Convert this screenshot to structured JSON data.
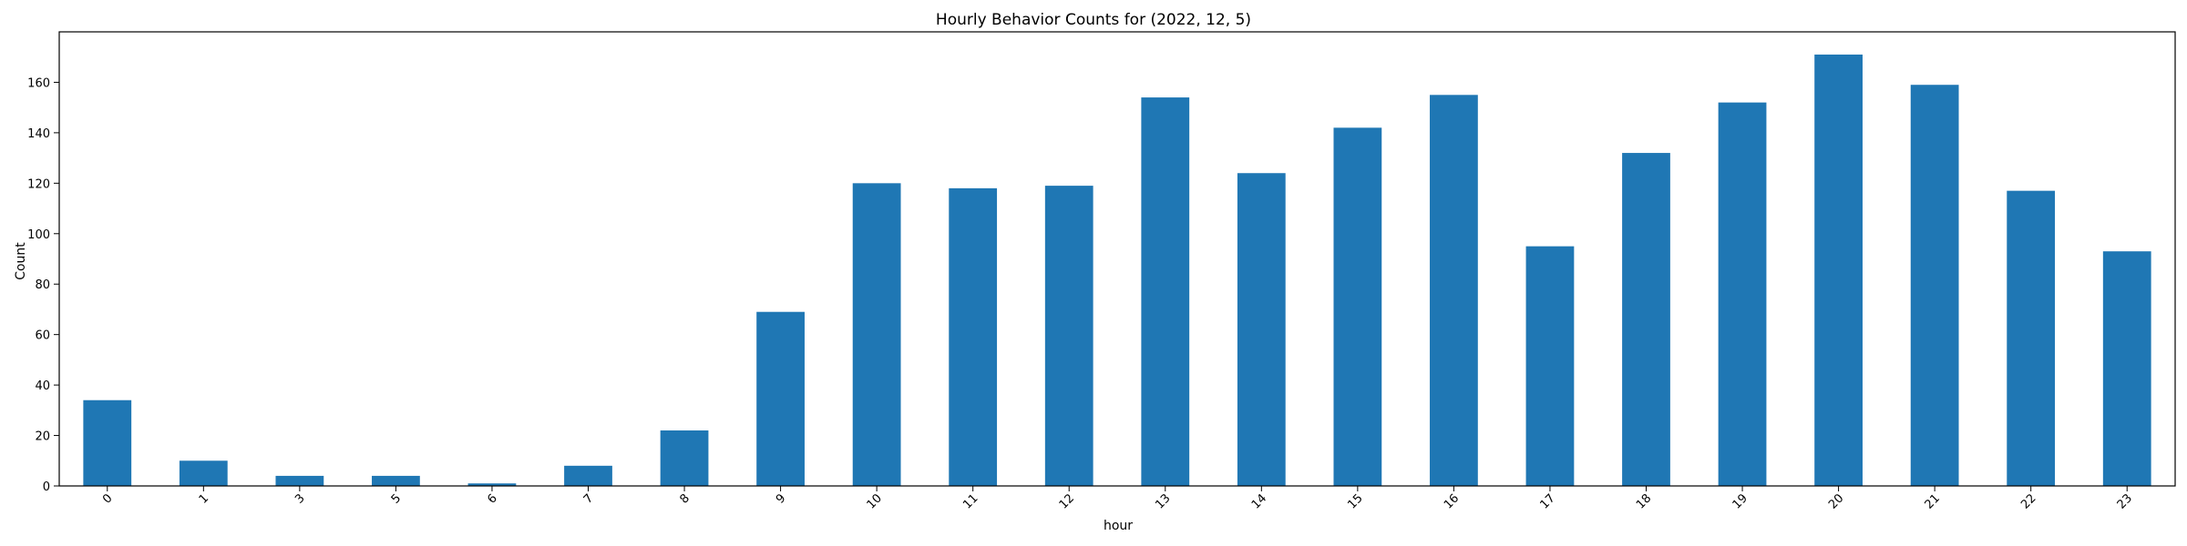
{
  "chart_data": {
    "type": "bar",
    "title": "Hourly Behavior Counts for (2022, 12, 5)",
    "xlabel": "hour",
    "ylabel": "Count",
    "categories": [
      "0",
      "1",
      "3",
      "5",
      "6",
      "7",
      "8",
      "9",
      "10",
      "11",
      "12",
      "13",
      "14",
      "15",
      "16",
      "17",
      "18",
      "19",
      "20",
      "21",
      "22",
      "23"
    ],
    "values": [
      34,
      10,
      4,
      4,
      1,
      8,
      22,
      69,
      120,
      118,
      119,
      154,
      124,
      142,
      155,
      95,
      132,
      152,
      171,
      159,
      117,
      93
    ],
    "ylim": [
      0,
      180
    ],
    "yticks": [
      0,
      20,
      40,
      60,
      80,
      100,
      120,
      140,
      160
    ],
    "grid": false,
    "bar_color": "#1f77b4"
  }
}
